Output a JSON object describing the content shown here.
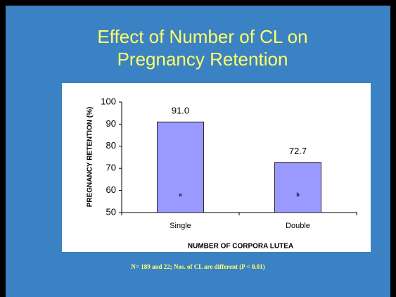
{
  "chart_data": {
    "type": "bar",
    "title": "Effect of Number of CL on Pregnancy Retention",
    "y_label": "PREGNANCY RETENTION (%)",
    "x_label": "NUMBER OF CORPORA LUTEA",
    "categories": [
      "Single",
      "Double"
    ],
    "values": [
      91.0,
      72.7
    ],
    "value_labels": [
      "91.0",
      "72.7"
    ],
    "bar_annotations": [
      "a",
      "b"
    ],
    "color": "#9999ff",
    "ylim": [
      50,
      100
    ],
    "yticks": [
      50,
      60,
      70,
      80,
      90,
      100
    ],
    "grid": false,
    "footnote": "N= 189 and 22; Nos. of CL are different (P < 0.01)"
  }
}
